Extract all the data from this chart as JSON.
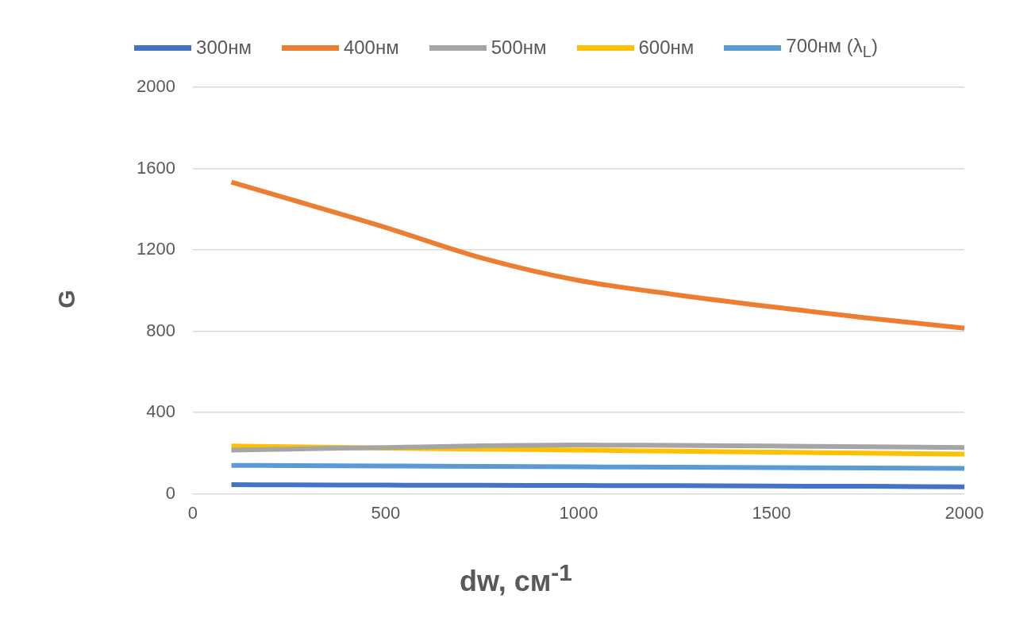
{
  "chart_data": {
    "type": "line",
    "xlabel": "dw, см$^{-1}$",
    "ylabel": "G",
    "xlim": [
      0,
      2000
    ],
    "xticks": [
      0,
      500,
      1000,
      1500,
      2000
    ],
    "ylim": [
      0,
      2000
    ],
    "yticks": [
      0,
      400,
      800,
      1200,
      1600,
      2000
    ],
    "grid": "y",
    "legend": "top",
    "marker": "none",
    "line_style": "solid",
    "x": [
      100,
      250,
      500,
      750,
      1000,
      1250,
      1500,
      1750,
      2000
    ],
    "series": [
      {
        "name": "300нм",
        "color": "#4472c4",
        "values": [
          45,
          44,
          43,
          42,
          41,
          40,
          38,
          37,
          35
        ]
      },
      {
        "name": "400нм",
        "color": "#ed7d31",
        "values": [
          1533,
          1450,
          1310,
          1160,
          1050,
          980,
          920,
          865,
          815
        ]
      },
      {
        "name": "500нм",
        "color": "#a5a5a5",
        "values": [
          215,
          220,
          228,
          236,
          240,
          238,
          235,
          232,
          228
        ]
      },
      {
        "name": "600нм",
        "color": "#ffc000",
        "values": [
          235,
          232,
          225,
          220,
          215,
          210,
          205,
          200,
          195
        ]
      },
      {
        "name": "700нм (λ$_{L}$)",
        "color": "#5b9bd5",
        "values": [
          140,
          139,
          137,
          135,
          133,
          131,
          129,
          127,
          125
        ]
      }
    ]
  }
}
